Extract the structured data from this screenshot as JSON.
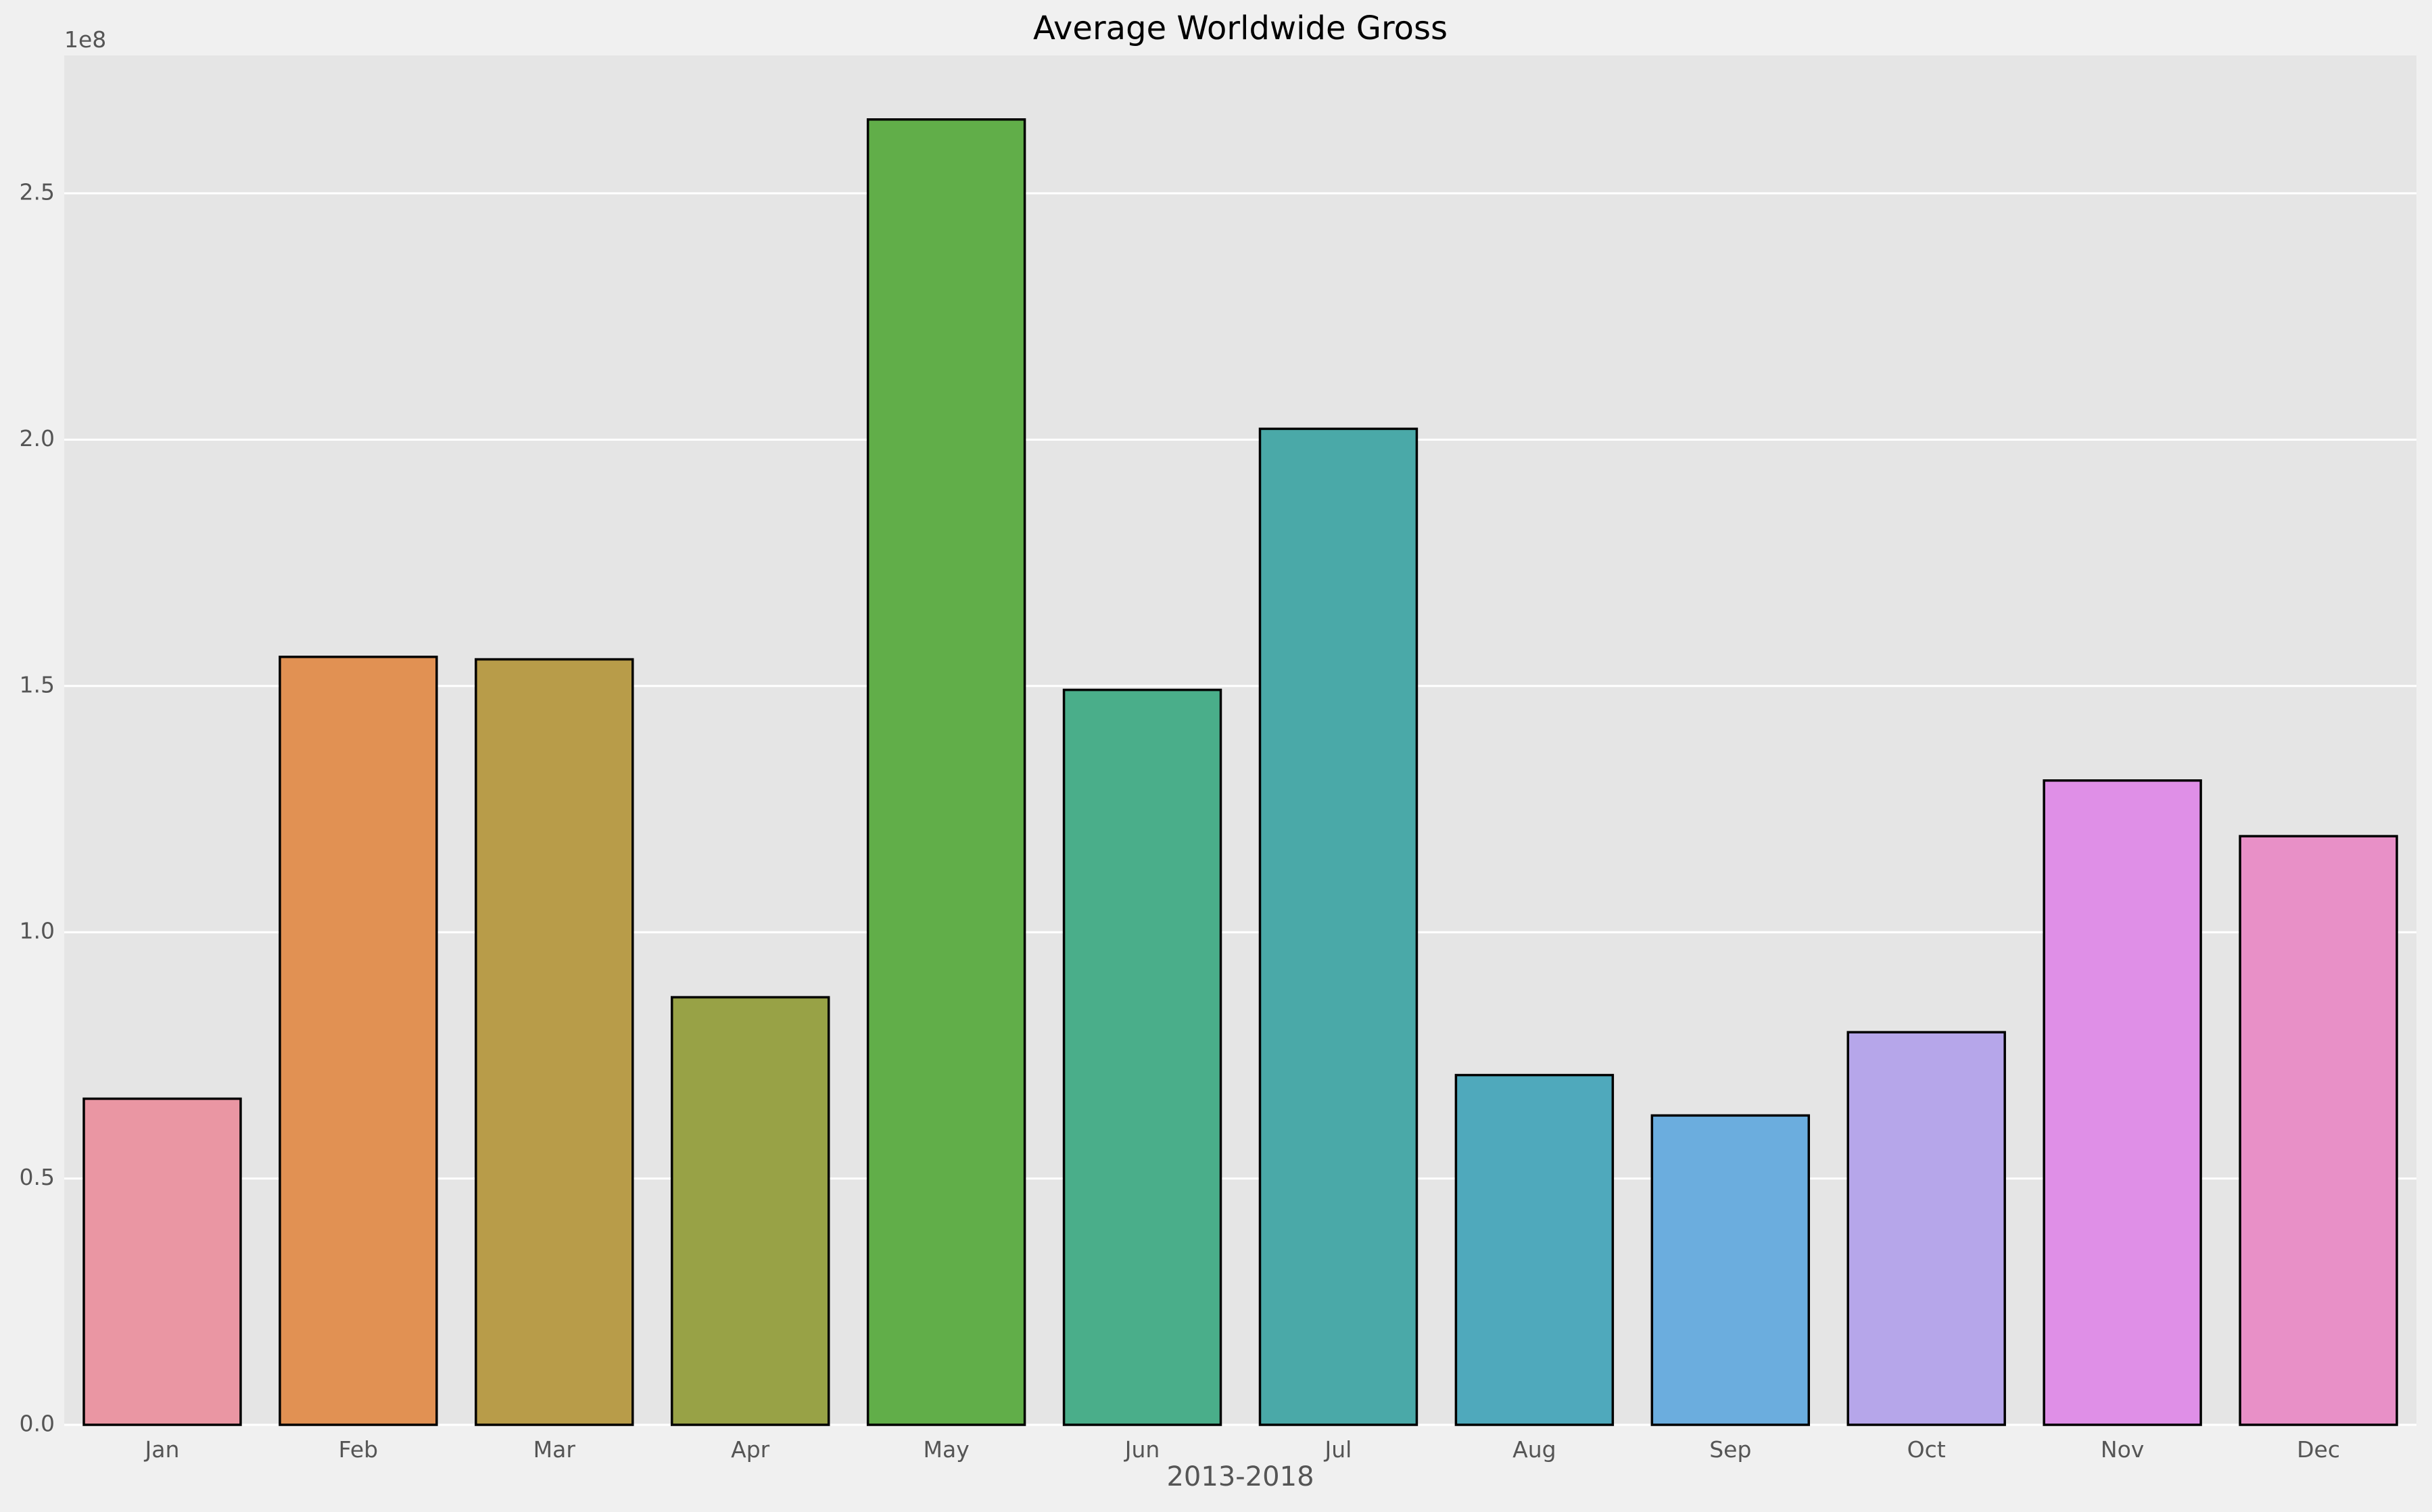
{
  "chart_data": {
    "type": "bar",
    "title": "Average Worldwide Gross",
    "xlabel": "2013-2018",
    "ylabel": "",
    "y_offset_label": "1e8",
    "categories": [
      "Jan",
      "Feb",
      "Mar",
      "Apr",
      "May",
      "Jun",
      "Jul",
      "Aug",
      "Sep",
      "Oct",
      "Nov",
      "Dec"
    ],
    "values": [
      66200000,
      155900000,
      155400000,
      86800000,
      265000000,
      149200000,
      202200000,
      71000000,
      62800000,
      79700000,
      130800000,
      119500000
    ],
    "bar_colors": [
      "#ea96a3",
      "#e19153",
      "#b89c49",
      "#98a246",
      "#61ae49",
      "#4aae8a",
      "#4aa9a8",
      "#4fa9bc",
      "#6badde",
      "#b6a6ea",
      "#df8fe7",
      "#e890c7"
    ],
    "yticks": [
      0,
      50000000,
      100000000,
      150000000,
      200000000,
      250000000
    ],
    "ytick_labels": [
      "0.0",
      "0.5",
      "1.0",
      "1.5",
      "2.0",
      "2.5"
    ],
    "ylim": [
      0,
      278000000
    ],
    "grid": true,
    "legend": "none"
  },
  "colors": {
    "figure_background": "#f0f0f0",
    "plot_background": "#e5e5e5",
    "grid": "#ffffff",
    "bar_edge": "#000000",
    "text": "#000000",
    "tick_text": "#555555"
  }
}
